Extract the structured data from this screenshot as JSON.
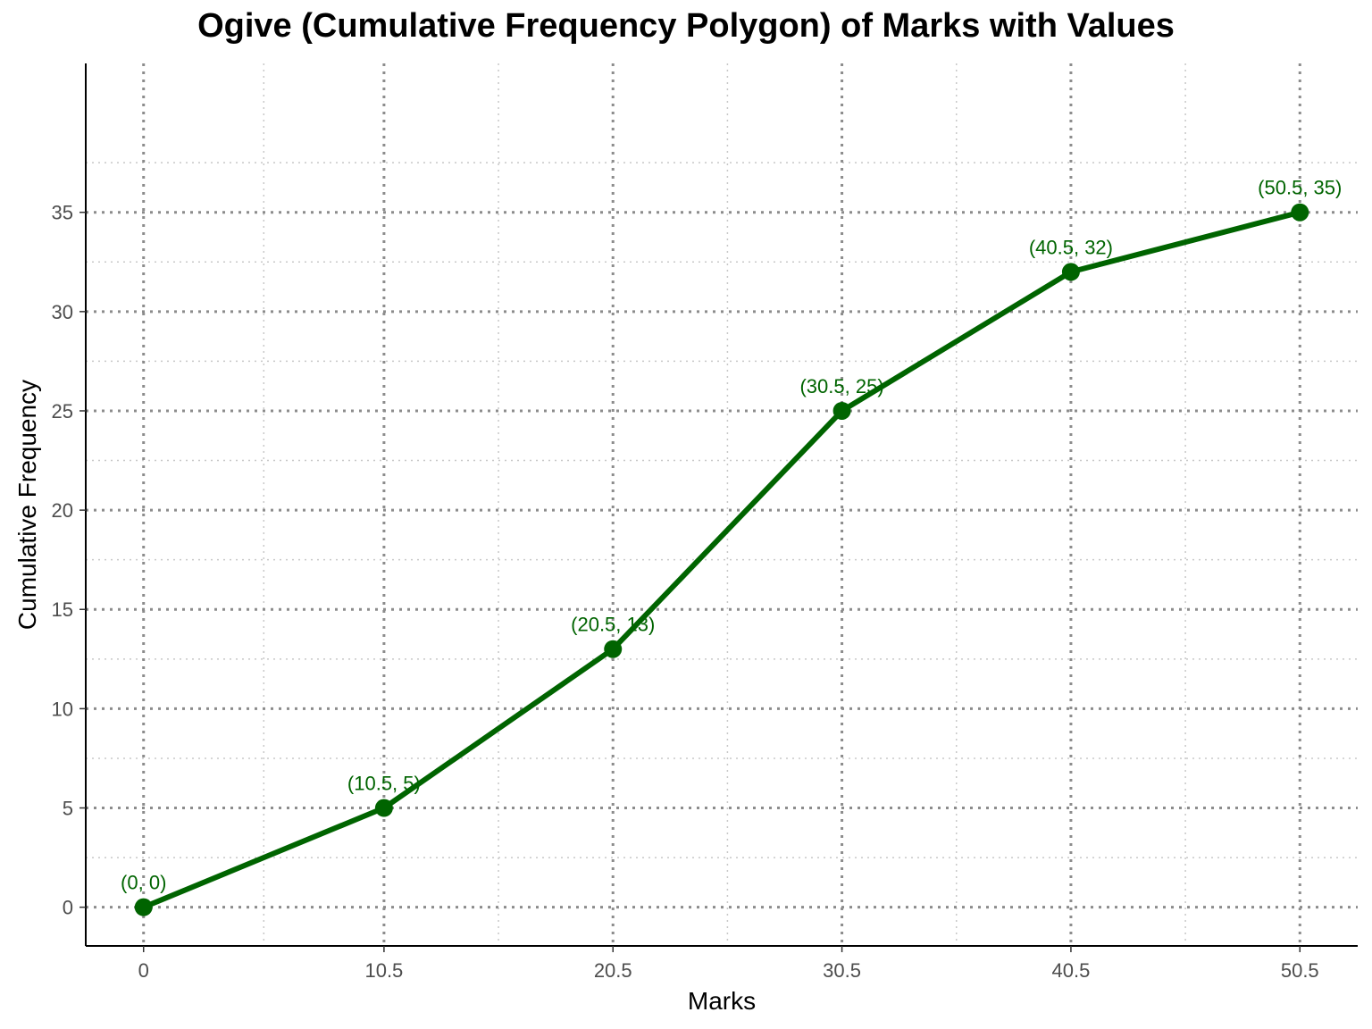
{
  "chart_data": {
    "type": "line",
    "title": "Ogive (Cumulative Frequency Polygon) of Marks with Values",
    "xlabel": "Marks",
    "ylabel": "Cumulative Frequency",
    "x": [
      0,
      10.5,
      20.5,
      30.5,
      40.5,
      50.5
    ],
    "series": [
      {
        "values": [
          0,
          5,
          13,
          25,
          32,
          35
        ]
      }
    ],
    "point_labels": [
      "(0, 0)",
      "(10.5, 5)",
      "(20.5, 13)",
      "(30.5, 25)",
      "(40.5, 32)",
      "(50.5, 35)"
    ],
    "x_ticks": [
      0,
      10.5,
      20.5,
      30.5,
      40.5,
      50.5
    ],
    "x_tick_labels": [
      "0",
      "10.5",
      "20.5",
      "30.5",
      "40.5",
      "50.5"
    ],
    "y_ticks": [
      0,
      5,
      10,
      15,
      20,
      25,
      30,
      35
    ],
    "y_tick_labels": [
      "0",
      "5",
      "10",
      "15",
      "20",
      "25",
      "30",
      "35"
    ],
    "xlim": [
      -2.525,
      53.025
    ],
    "ylim": [
      -1.95,
      42.5
    ],
    "grid": true,
    "colors": {
      "series": "#006400",
      "grid_major": "#8c8c8c",
      "grid_minor": "#c8c8c8"
    }
  }
}
